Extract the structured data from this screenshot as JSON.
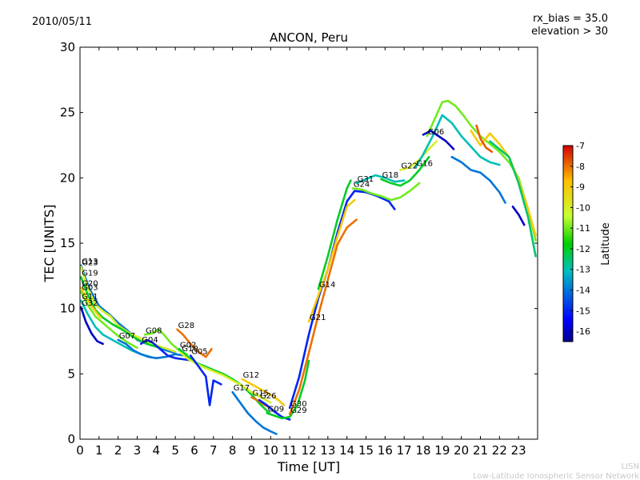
{
  "header": {
    "date": "2010/05/11",
    "rx_bias": "rx_bias = 35.0",
    "elevation": "elevation > 30"
  },
  "footer": {
    "line1": "LISN",
    "line2": "Low-Latitude Ionospheric Sensor Network"
  },
  "colors": {
    "low": "#00008f",
    "mid": "#7fff7f",
    "high": "#d40000"
  },
  "chart_data": {
    "type": "line",
    "title": "ANCON, Peru",
    "xlabel": "Time [UT]",
    "ylabel": "TEC [UNITS]",
    "xlim": [
      0,
      24
    ],
    "ylim": [
      0,
      30
    ],
    "xticks": [
      "0",
      "1",
      "2",
      "3",
      "4",
      "5",
      "6",
      "7",
      "8",
      "9",
      "10",
      "11",
      "12",
      "13",
      "14",
      "15",
      "16",
      "17",
      "18",
      "19",
      "20",
      "21",
      "22",
      "23"
    ],
    "yticks": [
      "0",
      "5",
      "10",
      "15",
      "20",
      "25",
      "30"
    ],
    "colorbar": {
      "label": "Latitude",
      "range": [
        -16.5,
        -7
      ],
      "ticks": [
        "-16",
        "-15",
        "-14",
        "-13",
        "-12",
        "-11",
        "-10",
        "-9",
        "-8",
        "-7"
      ]
    },
    "series": [
      {
        "name": "G13",
        "lat": -14,
        "x": [
          0.05,
          0.5,
          1.0,
          1.5,
          2.0,
          2.5,
          3.0,
          3.5,
          4.0,
          4.5,
          5.0
        ],
        "y": [
          13.3,
          11.5,
          10.2,
          9.6,
          8.9,
          8.3,
          7.6,
          7.3,
          7.1,
          6.8,
          6.6
        ]
      },
      {
        "name": "G23",
        "lat": -10,
        "x": [
          0.05,
          0.4,
          0.8,
          1.2,
          1.6,
          2.0,
          2.6,
          3.2,
          3.8,
          4.4,
          5.0
        ],
        "y": [
          13.2,
          11.6,
          10.3,
          9.8,
          9.4,
          8.7,
          8.1,
          7.7,
          7.3,
          7.0,
          6.7
        ]
      },
      {
        "name": "G19",
        "lat": -12,
        "x": [
          0.05,
          0.4,
          0.8,
          1.2,
          1.7,
          2.2,
          2.7,
          3.2,
          3.7,
          4.2
        ],
        "y": [
          12.4,
          11.1,
          9.9,
          9.3,
          8.8,
          8.4,
          7.9,
          7.5,
          7.2,
          7.0
        ]
      },
      {
        "name": "G20",
        "lat": -9,
        "x": [
          0.05,
          0.3,
          0.6,
          0.9,
          1.1
        ],
        "y": [
          11.6,
          10.9,
          10.2,
          9.6,
          9.3
        ]
      },
      {
        "name": "G03",
        "lat": -11,
        "x": [
          0.05,
          0.4,
          0.8,
          1.2,
          1.6,
          2.0,
          2.5,
          3.0
        ],
        "y": [
          11.3,
          10.3,
          9.4,
          8.9,
          8.4,
          7.9,
          7.4,
          7.0
        ]
      },
      {
        "name": "G11",
        "lat": -13,
        "x": [
          0.05,
          0.4,
          0.8,
          1.2,
          1.7,
          2.2,
          2.7,
          3.2,
          3.7
        ],
        "y": [
          10.6,
          9.6,
          8.6,
          8.0,
          7.6,
          7.2,
          6.8,
          6.5,
          6.3
        ]
      },
      {
        "name": "G32",
        "lat": -16,
        "x": [
          0.05,
          0.3,
          0.6,
          0.9,
          1.2
        ],
        "y": [
          10.1,
          9.0,
          8.1,
          7.5,
          7.3
        ]
      },
      {
        "name": "G07",
        "lat": -14,
        "x": [
          2.0,
          2.4,
          2.8,
          3.2,
          3.6,
          4.0,
          4.5,
          5.0,
          5.5
        ],
        "y": [
          7.6,
          7.3,
          6.8,
          6.5,
          6.3,
          6.2,
          6.3,
          6.5,
          6.4
        ]
      },
      {
        "name": "G08",
        "lat": -11,
        "x": [
          3.4,
          3.8,
          4.1,
          4.4,
          4.8,
          5.2,
          5.6
        ],
        "y": [
          8.0,
          8.1,
          8.4,
          8.0,
          7.3,
          6.8,
          6.5
        ]
      },
      {
        "name": "G04",
        "lat": -15,
        "x": [
          3.2,
          3.5,
          3.8,
          4.2,
          4.6,
          5.0,
          5.5,
          6.0
        ],
        "y": [
          7.3,
          7.6,
          7.4,
          6.9,
          6.4,
          6.2,
          6.1,
          6.0
        ]
      },
      {
        "name": "G28",
        "lat": -8,
        "x": [
          5.1,
          5.4,
          5.8,
          6.2,
          6.6,
          6.9
        ],
        "y": [
          8.4,
          8.0,
          7.3,
          6.7,
          6.3,
          6.9
        ]
      },
      {
        "name": "G02",
        "lat": -12,
        "x": [
          5.2,
          5.6,
          6.0,
          6.5,
          7.0,
          7.5,
          8.0,
          8.5,
          9.0,
          9.5,
          10.0
        ],
        "y": [
          6.9,
          6.4,
          5.9,
          5.6,
          5.3,
          5.0,
          4.6,
          4.1,
          3.4,
          2.6,
          1.9
        ]
      },
      {
        "name": "G10",
        "lat": -10,
        "x": [
          5.3,
          5.7,
          6.1,
          6.5,
          7.0,
          7.5,
          8.0,
          8.5,
          9.0,
          9.5,
          10.0
        ],
        "y": [
          6.6,
          6.1,
          5.8,
          5.5,
          5.2,
          4.9,
          4.5,
          4.1,
          3.6,
          3.2,
          2.8
        ]
      },
      {
        "name": "G05",
        "lat": -15,
        "x": [
          5.8,
          6.2,
          6.6,
          6.8,
          7.0,
          7.4
        ],
        "y": [
          6.4,
          5.6,
          4.8,
          2.6,
          4.5,
          4.2
        ]
      },
      {
        "name": "G17",
        "lat": -14,
        "x": [
          8.0,
          8.4,
          8.8,
          9.2,
          9.6,
          10.0,
          10.3
        ],
        "y": [
          3.6,
          2.8,
          2.0,
          1.4,
          0.9,
          0.6,
          0.4
        ]
      },
      {
        "name": "G15",
        "lat": -8,
        "x": [
          9.0,
          9.4,
          9.7,
          10.0
        ],
        "y": [
          3.2,
          2.9,
          2.6,
          2.4
        ]
      },
      {
        "name": "G12",
        "lat": -9,
        "x": [
          8.5,
          9.0,
          9.5,
          10.0,
          10.4,
          10.7
        ],
        "y": [
          4.6,
          4.2,
          3.8,
          3.4,
          3.0,
          2.6
        ]
      },
      {
        "name": "G26",
        "lat": -15,
        "x": [
          9.4,
          9.8,
          10.2,
          10.6,
          11.0
        ],
        "y": [
          3.0,
          2.6,
          2.1,
          1.7,
          1.5
        ]
      },
      {
        "name": "G09",
        "lat": -12,
        "x": [
          9.8,
          10.2,
          10.6,
          11.0,
          11.4,
          11.8,
          12.0
        ],
        "y": [
          2.0,
          1.8,
          1.6,
          1.7,
          2.6,
          4.5,
          6.0
        ]
      },
      {
        "name": "G29",
        "lat": -8,
        "x": [
          11.0,
          11.5,
          12.0,
          12.5,
          13.0,
          13.5,
          14.0,
          14.5
        ],
        "y": [
          1.9,
          3.8,
          6.6,
          9.5,
          12.2,
          14.9,
          16.2,
          16.8
        ]
      },
      {
        "name": "G30",
        "lat": -15,
        "x": [
          11.0,
          11.5,
          12.0,
          12.5,
          13.0,
          13.5,
          14.0,
          14.4,
          15.0,
          15.6,
          16.2,
          16.5
        ],
        "y": [
          2.4,
          4.8,
          8.0,
          10.8,
          13.0,
          15.8,
          18.2,
          19.0,
          18.9,
          18.6,
          18.2,
          17.6
        ]
      },
      {
        "name": "G21",
        "lat": -9,
        "x": [
          12.0,
          12.5,
          13.0,
          13.5,
          14.0,
          14.4
        ],
        "y": [
          9.0,
          11.0,
          13.0,
          15.5,
          17.8,
          18.3
        ]
      },
      {
        "name": "G14",
        "lat": -12,
        "x": [
          12.5,
          13.0,
          13.5,
          14.0,
          14.2
        ],
        "y": [
          11.5,
          14.0,
          16.8,
          19.2,
          19.8
        ]
      },
      {
        "name": "G31",
        "lat": -13,
        "x": [
          14.5,
          15.0,
          15.5,
          16.0,
          16.5,
          17.0
        ],
        "y": [
          19.6,
          19.9,
          20.2,
          20.0,
          19.7,
          19.8
        ]
      },
      {
        "name": "G24",
        "lat": -11,
        "x": [
          14.3,
          14.8,
          15.3,
          15.8,
          16.3,
          16.8,
          17.3,
          17.8
        ],
        "y": [
          19.2,
          19.1,
          18.8,
          18.6,
          18.3,
          18.5,
          19.0,
          19.6
        ]
      },
      {
        "name": "G18",
        "lat": -12,
        "x": [
          15.8,
          16.3,
          16.8,
          17.3,
          17.8,
          18.3
        ],
        "y": [
          19.9,
          19.6,
          19.4,
          19.8,
          20.6,
          21.6
        ]
      },
      {
        "name": "G22",
        "lat": -10,
        "x": [
          16.8,
          17.3,
          17.8,
          18.3,
          18.7
        ],
        "y": [
          20.6,
          20.8,
          21.4,
          22.2,
          22.8
        ]
      },
      {
        "name": "G16",
        "lat": -13,
        "x": [
          17.6,
          18.0,
          18.5,
          19.0,
          19.5,
          20.0,
          20.5,
          21.0,
          21.5,
          22.0
        ],
        "y": [
          20.8,
          21.8,
          23.2,
          24.8,
          24.2,
          23.2,
          22.4,
          21.6,
          21.2,
          21.0
        ]
      },
      {
        "name": "G06",
        "lat": -11,
        "x": [
          18.2,
          18.6,
          19.0,
          19.3,
          19.7,
          20.1,
          20.5,
          21.0,
          21.5,
          22.0,
          22.5,
          23.0,
          23.5,
          23.9
        ],
        "y": [
          23.2,
          24.5,
          25.8,
          25.9,
          25.5,
          24.8,
          24.0,
          23.2,
          22.6,
          22.0,
          21.2,
          20.0,
          17.6,
          15.2
        ]
      },
      {
        "name": "",
        "lat": -16,
        "x": [
          18.0,
          18.4,
          18.8,
          19.2,
          19.6
        ],
        "y": [
          23.3,
          23.6,
          23.2,
          22.8,
          22.2
        ]
      },
      {
        "name": "",
        "lat": -14,
        "x": [
          19.5,
          20.0,
          20.5,
          21.0,
          21.5,
          22.0,
          22.3
        ],
        "y": [
          21.6,
          21.2,
          20.6,
          20.4,
          19.8,
          18.9,
          18.1
        ]
      },
      {
        "name": "",
        "lat": -9,
        "x": [
          20.5,
          21.0,
          21.5,
          22.0,
          22.5,
          23.0,
          23.5,
          23.9
        ],
        "y": [
          23.6,
          22.5,
          23.4,
          22.6,
          21.6,
          19.8,
          17.6,
          15.6
        ]
      },
      {
        "name": "",
        "lat": -7.8,
        "x": [
          20.8,
          21.0,
          21.3,
          21.6
        ],
        "y": [
          24.0,
          23.0,
          22.3,
          22.0
        ]
      },
      {
        "name": "",
        "lat": -12.5,
        "x": [
          21.5,
          22.0,
          22.5,
          23.0,
          23.5,
          23.9
        ],
        "y": [
          22.8,
          22.2,
          21.6,
          19.6,
          17.0,
          14.0
        ]
      },
      {
        "name": "",
        "lat": -16,
        "x": [
          22.7,
          23.0,
          23.3
        ],
        "y": [
          17.8,
          17.2,
          16.4
        ]
      }
    ]
  }
}
